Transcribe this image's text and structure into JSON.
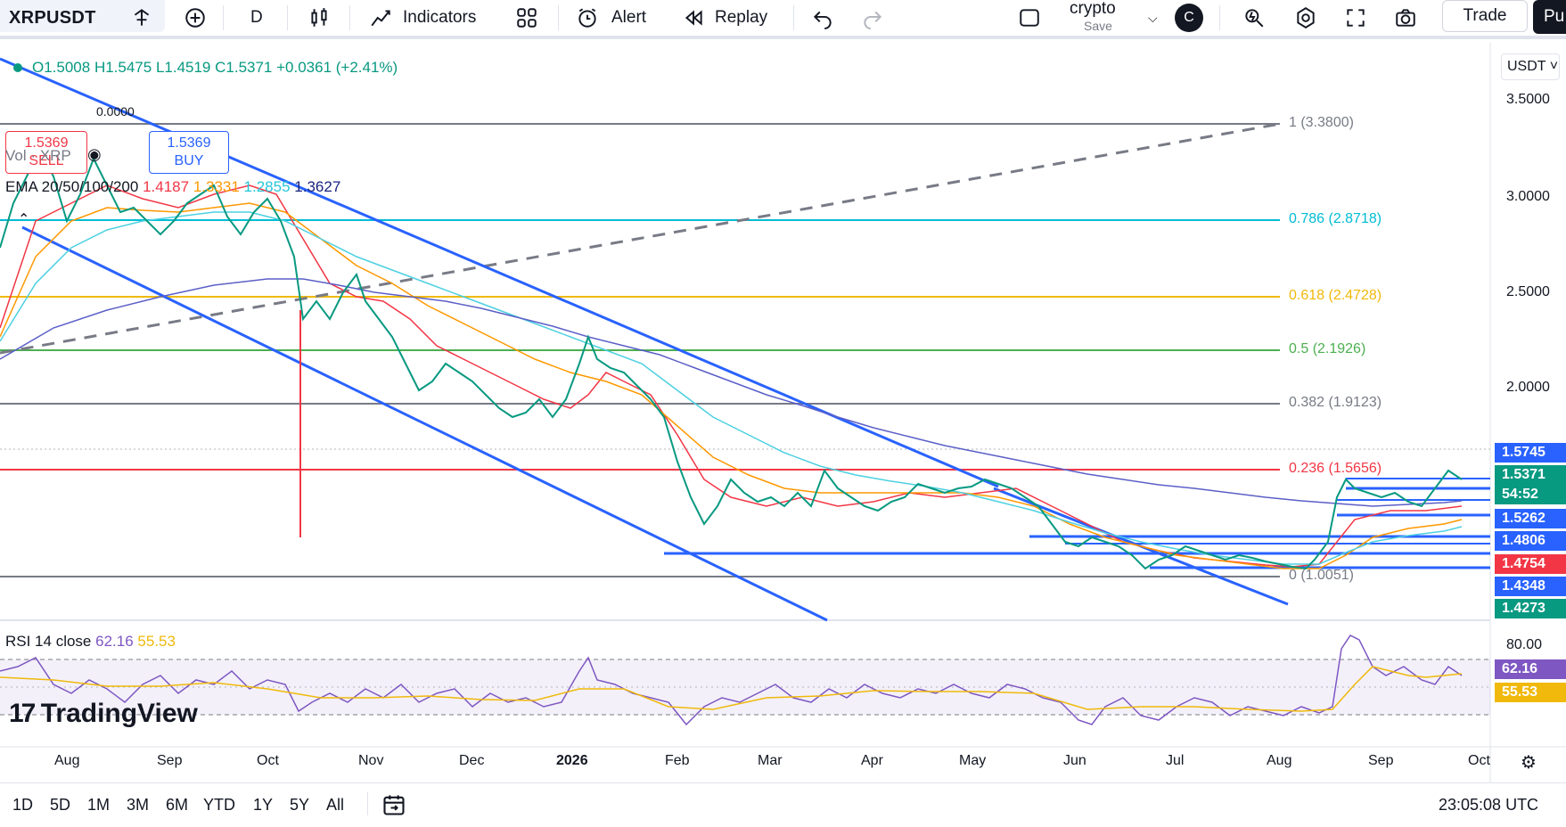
{
  "toolbar": {
    "symbol": "XRPUSDT",
    "interval": "D",
    "indicators_label": "Indicators",
    "alert_label": "Alert",
    "replay_label": "Replay",
    "layout_name": "crypto",
    "layout_save": "Save",
    "avatar_letter": "C",
    "trade_label": "Trade",
    "publish_label": "Pu"
  },
  "legend": {
    "ohlc": "O1.5008  H1.5475  L1.4519  C1.5371  +0.0361 (+2.41%)",
    "sell_price": "1.5369",
    "sell_label": "SELL",
    "spread": "0.0000",
    "buy_price": "1.5369",
    "buy_label": "BUY",
    "vol": "Vol · XRP",
    "ema_title": "EMA 20/50/100/200",
    "ema_20": "1.4187",
    "ema_50": "1.3331",
    "ema_100": "1.2855",
    "ema_200": "1.3627",
    "rsi_title": "RSI 14 close",
    "rsi_value": "62.16",
    "rsi_ma": "55.53"
  },
  "currency_selector": "USDT",
  "price_axis": [
    "3.5000",
    "3.0000",
    "2.5000",
    "2.0000"
  ],
  "rsi_axis": "80.00",
  "fib_levels": [
    {
      "label": "1 (3.3800)",
      "color": "#787b86"
    },
    {
      "label": "0.786 (2.8718)",
      "color": "#00bcd4"
    },
    {
      "label": "0.618 (2.4728)",
      "color": "#f0b90b"
    },
    {
      "label": "0.5 (2.1926)",
      "color": "#4caf50"
    },
    {
      "label": "0.382 (1.9123)",
      "color": "#787b86"
    },
    {
      "label": "0.236 (1.5656)",
      "color": "#f23645"
    },
    {
      "label": "0 (1.0051)",
      "color": "#787b86"
    }
  ],
  "price_tags": [
    {
      "value": "1.5745",
      "color": "#2962ff"
    },
    {
      "value": "1.5371",
      "color": "#089981"
    },
    {
      "value": "54:52",
      "color": "#089981"
    },
    {
      "value": "1.5262",
      "color": "#2962ff"
    },
    {
      "value": "1.4806",
      "color": "#2962ff"
    },
    {
      "value": "1.4754",
      "color": "#f23645"
    },
    {
      "value": "1.4348",
      "color": "#2962ff"
    },
    {
      "value": "1.4273",
      "color": "#089981"
    }
  ],
  "rsi_tags": [
    {
      "value": "62.16",
      "color": "#7e57c2"
    },
    {
      "value": "55.53",
      "color": "#f0b90b"
    }
  ],
  "time_axis": [
    "Aug",
    "Sep",
    "Oct",
    "Nov",
    "Dec",
    "2026",
    "Feb",
    "Mar",
    "Apr",
    "May",
    "Jun",
    "Jul",
    "Aug",
    "Sep",
    "Oct"
  ],
  "watermark": "TradingView",
  "bottom": {
    "ranges": [
      "1D",
      "5D",
      "1M",
      "3M",
      "6M",
      "YTD",
      "1Y",
      "5Y",
      "All"
    ],
    "clock": "23:05:08 UTC"
  }
}
